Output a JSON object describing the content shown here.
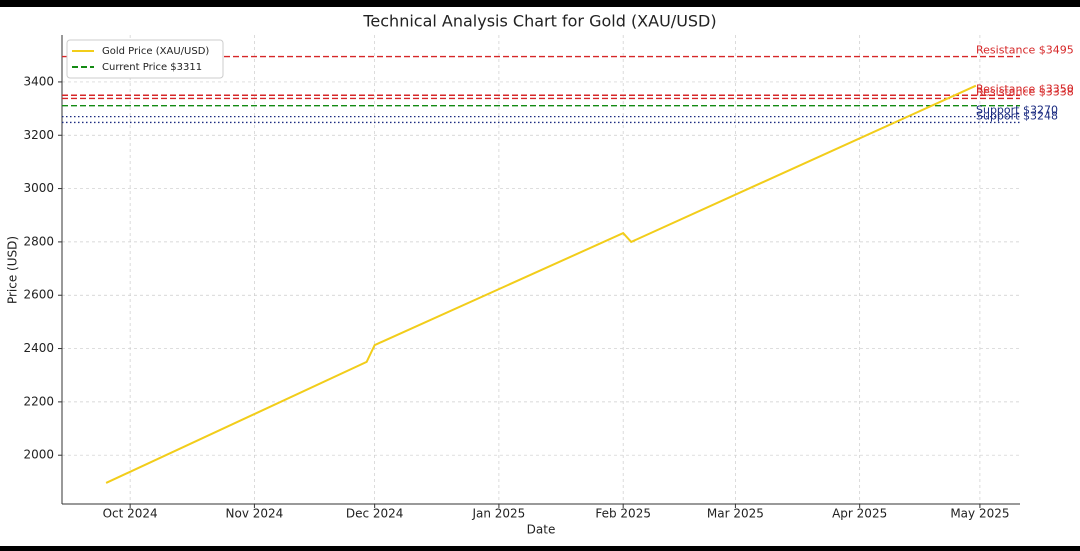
{
  "chart_data": {
    "type": "line",
    "title": "Technical Analysis Chart for Gold (XAU/USD)",
    "x_label": "Date",
    "y_label": "Price (USD)",
    "x": [
      "2024-09-25",
      "2024-11-29",
      "2024-12-01",
      "2025-02-01",
      "2025-02-03",
      "2025-04-30"
    ],
    "series": [
      {
        "name": "Gold Price (XAU/USD)",
        "color": "#f2cd1a",
        "values": [
          1896,
          2350,
          2413,
          2833,
          2800,
          3386
        ]
      }
    ],
    "xlim": [
      "2024-09-14",
      "2025-05-11"
    ],
    "xticks": [
      {
        "value": "2024-10-01",
        "label": "Oct 2024"
      },
      {
        "value": "2024-11-01",
        "label": "Nov 2024"
      },
      {
        "value": "2024-12-01",
        "label": "Dec 2024"
      },
      {
        "value": "2025-01-01",
        "label": "Jan 2025"
      },
      {
        "value": "2025-02-01",
        "label": "Feb 2025"
      },
      {
        "value": "2025-03-01",
        "label": "Mar 2025"
      },
      {
        "value": "2025-04-01",
        "label": "Apr 2025"
      },
      {
        "value": "2025-05-01",
        "label": "May 2025"
      }
    ],
    "ylim": [
      1817,
      3576
    ],
    "yticks": [
      2000,
      2200,
      2400,
      2600,
      2800,
      3000,
      3200,
      3400
    ],
    "grid": true,
    "legend": "upper left",
    "hlines": [
      {
        "label": "Resistance $3495",
        "value": 3495,
        "color": "#d62728",
        "style": "dashed",
        "label_position": "right"
      },
      {
        "label": "Resistance $3350",
        "value": 3350,
        "color": "#d62728",
        "style": "dashed",
        "label_position": "right"
      },
      {
        "label": "Resistance $3338",
        "value": 3338,
        "color": "#d62728",
        "style": "dashed",
        "label_position": "right"
      },
      {
        "label": "Current Price $3311",
        "value": 3311,
        "color": "#138a13",
        "style": "dashed",
        "label_position": "legend"
      },
      {
        "label": "Support $3270",
        "value": 3270,
        "color": "#1a2a80",
        "style": "dotted",
        "label_position": "right"
      },
      {
        "label": "Support $3248",
        "value": 3248,
        "color": "#1a2a80",
        "style": "dotted",
        "label_position": "right"
      }
    ]
  }
}
